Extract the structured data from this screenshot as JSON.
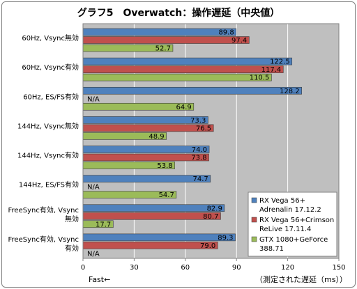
{
  "chart_data": {
    "type": "bar",
    "orientation": "horizontal",
    "title": "グラフ5　Overwatch：操作遅延（中央値）",
    "categories": [
      [
        "60Hz, Vsync無効"
      ],
      [
        "60Hz, Vsync有効"
      ],
      [
        "60Hz, ES/FS有効"
      ],
      [
        "144Hz, Vsync無効"
      ],
      [
        "144Hz, Vsync有効"
      ],
      [
        "144Hz, ES/FS有効"
      ],
      [
        "FreeSync有効, Vsync",
        "無効"
      ],
      [
        "FreeSync有効, Vsync",
        "有効"
      ]
    ],
    "series": [
      {
        "name": [
          "RX Vega 56+",
          "Adrenalin 17.12.2"
        ],
        "color": "#4f81bd",
        "values": [
          89.8,
          122.5,
          128.2,
          73.3,
          74.0,
          74.7,
          82.9,
          89.3
        ]
      },
      {
        "name": [
          "RX Vega 56+Crimson",
          "ReLive 17.11.4"
        ],
        "color": "#c0504d",
        "values": [
          97.4,
          117.4,
          null,
          76.5,
          73.8,
          null,
          80.7,
          79.0
        ]
      },
      {
        "name": [
          "GTX 1080+GeForce",
          "388.71"
        ],
        "color": "#9bbb59",
        "values": [
          52.7,
          110.5,
          64.9,
          48.9,
          53.8,
          54.7,
          17.7,
          null
        ]
      }
    ],
    "na_label": "N/A",
    "xlim": [
      0,
      150
    ],
    "xticks": [
      0,
      30,
      60,
      90,
      120,
      150
    ],
    "xlabel": "（測定された遅延（ms））",
    "x_annotation": "Fast←",
    "grid": true,
    "legend_position": "bottom-right"
  }
}
